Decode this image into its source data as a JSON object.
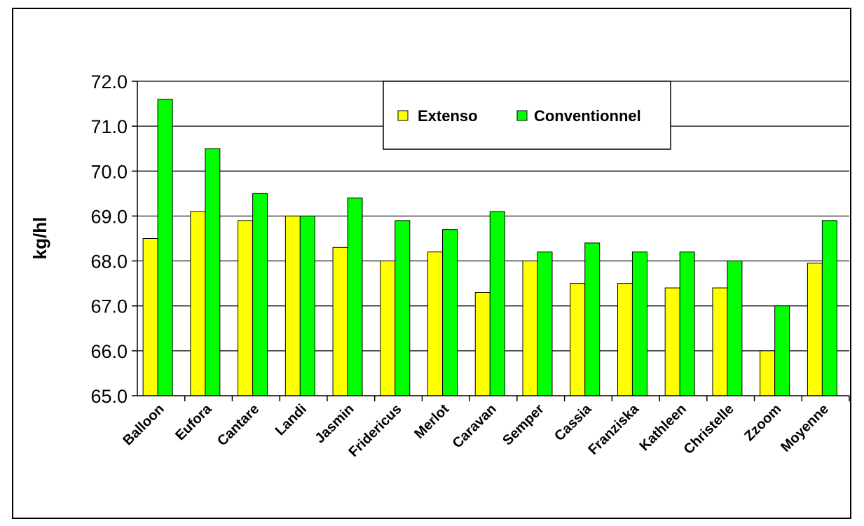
{
  "chart_data": {
    "type": "bar",
    "title": "",
    "xlabel": "",
    "ylabel": "kg/hl",
    "ylim": [
      65.0,
      72.0
    ],
    "yticks": [
      "65.0",
      "66.0",
      "67.0",
      "68.0",
      "69.0",
      "70.0",
      "71.0",
      "72.0"
    ],
    "grid": true,
    "legend_position": "top-center",
    "categories": [
      "Balloon",
      "Eufora",
      "Cantare",
      "Landi",
      "Jasmin",
      "Fridericus",
      "Merlot",
      "Caravan",
      "Semper",
      "Cassia",
      "Franziska",
      "Kathleen",
      "Christelle",
      "Zzoom",
      "Moyenne"
    ],
    "series": [
      {
        "name": "Extenso",
        "color": "#ffff00",
        "values": [
          68.5,
          69.1,
          68.9,
          69.0,
          68.3,
          68.0,
          68.2,
          67.3,
          68.0,
          67.5,
          67.5,
          67.4,
          67.4,
          66.0,
          67.95
        ]
      },
      {
        "name": "Conventionnel",
        "color": "#00ff00",
        "values": [
          71.6,
          70.5,
          69.5,
          69.0,
          69.4,
          68.9,
          68.7,
          69.1,
          68.2,
          68.4,
          68.2,
          68.2,
          68.0,
          67.0,
          68.9
        ]
      }
    ]
  }
}
